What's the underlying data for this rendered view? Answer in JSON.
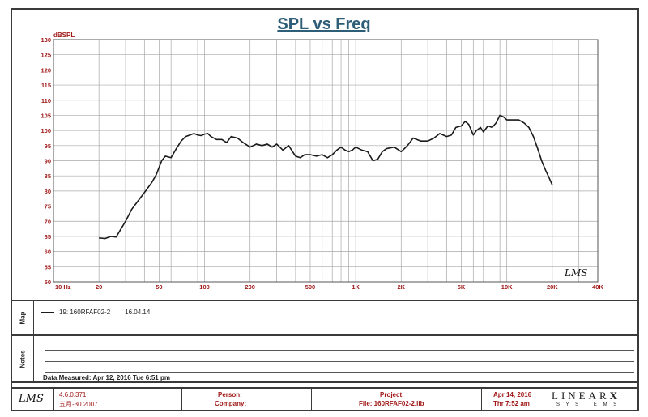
{
  "chart_data": {
    "type": "line",
    "title": "SPL vs Freq",
    "ylabel": "dBSPL",
    "x_scale": "log",
    "xlim": [
      10,
      40000
    ],
    "ylim": [
      50,
      130
    ],
    "y_ticks": [
      50,
      55,
      60,
      65,
      70,
      75,
      80,
      85,
      90,
      95,
      100,
      105,
      110,
      115,
      120,
      125,
      130
    ],
    "x_tick_values": [
      10,
      20,
      50,
      100,
      200,
      500,
      1000,
      2000,
      5000,
      10000,
      20000,
      40000
    ],
    "x_tick_labels": [
      "10 Hz",
      "20",
      "50",
      "100",
      "200",
      "500",
      "1K",
      "2K",
      "5K",
      "10K",
      "20K",
      "40K"
    ],
    "grid": true,
    "series": [
      {
        "color": "#1a1a1a",
        "x": [
          20,
          22,
          24,
          26,
          28,
          30,
          33,
          36,
          40,
          45,
          48,
          52,
          55,
          60,
          65,
          70,
          75,
          80,
          85,
          90,
          95,
          100,
          105,
          110,
          120,
          130,
          140,
          150,
          165,
          180,
          200,
          220,
          240,
          260,
          280,
          300,
          330,
          360,
          400,
          430,
          460,
          500,
          550,
          600,
          650,
          700,
          750,
          800,
          850,
          900,
          950,
          1000,
          1100,
          1200,
          1300,
          1400,
          1500,
          1600,
          1800,
          2000,
          2100,
          2200,
          2400,
          2700,
          3000,
          3300,
          3600,
          4000,
          4300,
          4600,
          5000,
          5300,
          5600,
          6000,
          6300,
          6700,
          7000,
          7500,
          8000,
          8500,
          9000,
          9500,
          10000,
          10500,
          11000,
          12000,
          13000,
          14000,
          15000,
          16000,
          17000,
          18000,
          19000,
          20000
        ],
        "y": [
          64.5,
          64.3,
          65.0,
          64.8,
          67.5,
          70.0,
          74.0,
          76.5,
          79.5,
          83.0,
          85.5,
          90.0,
          91.5,
          91.0,
          94.0,
          96.5,
          98.0,
          98.5,
          99.0,
          98.5,
          98.3,
          98.8,
          99.0,
          98.0,
          97.0,
          97.0,
          96.0,
          98.0,
          97.5,
          96.0,
          94.5,
          95.5,
          95.0,
          95.5,
          94.5,
          95.5,
          93.5,
          95.0,
          91.5,
          91.0,
          92.0,
          92.0,
          91.5,
          92.0,
          91.0,
          92.0,
          93.5,
          94.5,
          93.5,
          93.0,
          93.5,
          94.5,
          93.5,
          93.0,
          90.0,
          90.5,
          93.0,
          94.0,
          94.5,
          93.0,
          94.0,
          95.0,
          97.5,
          96.5,
          96.5,
          97.5,
          99.0,
          98.0,
          98.5,
          101.0,
          101.5,
          103.0,
          102.0,
          98.5,
          100.0,
          101.0,
          99.5,
          101.5,
          101.0,
          102.5,
          105.0,
          104.5,
          103.5,
          103.5,
          103.5,
          103.5,
          102.5,
          101.0,
          98.0,
          94.0,
          90.0,
          87.0,
          84.5,
          82.0
        ]
      }
    ]
  },
  "watermark_logo": "LMS",
  "map_panel": {
    "tab_label": "Map",
    "legend_id": "19: 160RFAF02-2",
    "legend_date": "16.04.14",
    "legend_color": "#1a1a1a"
  },
  "notes_panel": {
    "tab_label": "Notes",
    "measured_text": "Data Measured: Apr 12, 2016  Tue  6:51 pm"
  },
  "footer": {
    "logo": "LMS",
    "version": "4.6.0.371",
    "version_date": "五月-30.2007",
    "person_label": "Person:",
    "company_label": "Company:",
    "project_label": "Project:",
    "file_label": "File: 160RFAF02-2.lib",
    "date": "Apr 14, 2016",
    "time": "Thr  7:52 am",
    "brand_main": "LINEAR",
    "brand_x": "X",
    "brand_sub": "S Y S T E M S"
  },
  "colors": {
    "title": "#2e5d78",
    "tick_label": "#a01818",
    "grid": "#a8a8a8",
    "frame": "#3a3a3a"
  }
}
